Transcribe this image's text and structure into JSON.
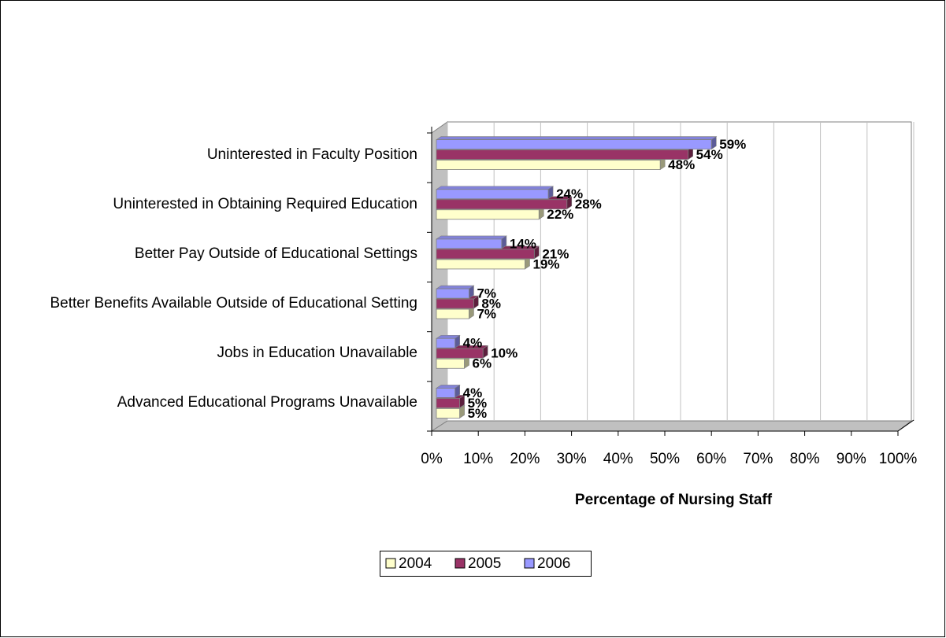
{
  "chart_data": {
    "type": "bar",
    "orientation": "horizontal",
    "x_label": "Percentage of Nursing Staff",
    "categories": [
      "Uninterested in Faculty Position",
      "Uninterested in Obtaining Required Education",
      "Better Pay Outside of Educational Settings",
      "Better Benefits Available Outside of Educational Setting",
      "Jobs in Education Unavailable",
      "Advanced Educational Programs Unavailable"
    ],
    "series": [
      {
        "name": "2004",
        "color": "#FFFFCC",
        "values": [
          48,
          22,
          19,
          7,
          6,
          5
        ],
        "value_labels": [
          "48%",
          "22%",
          "19%",
          "7%",
          "6%",
          "5%"
        ]
      },
      {
        "name": "2005",
        "color": "#993366",
        "values": [
          54,
          28,
          21,
          8,
          10,
          5
        ],
        "value_labels": [
          "54%",
          "28%",
          "21%",
          "8%",
          "10%",
          "5%"
        ]
      },
      {
        "name": "2006",
        "color": "#9999FF",
        "values": [
          59,
          24,
          14,
          7,
          4,
          4
        ],
        "value_labels": [
          "59%",
          "24%",
          "14%",
          "7%",
          "4%",
          "4%"
        ]
      }
    ],
    "xlim": [
      0,
      100
    ],
    "xticks": [
      {
        "value": 0,
        "label": "0%"
      },
      {
        "value": 10,
        "label": "10%"
      },
      {
        "value": 20,
        "label": "20%"
      },
      {
        "value": 30,
        "label": "30%"
      },
      {
        "value": 40,
        "label": "40%"
      },
      {
        "value": 50,
        "label": "50%"
      },
      {
        "value": 60,
        "label": "60%"
      },
      {
        "value": 70,
        "label": "70%"
      },
      {
        "value": 80,
        "label": "80%"
      },
      {
        "value": 90,
        "label": "90%"
      },
      {
        "value": 100,
        "label": "100%"
      }
    ],
    "grid": true,
    "legend": "bottom"
  }
}
